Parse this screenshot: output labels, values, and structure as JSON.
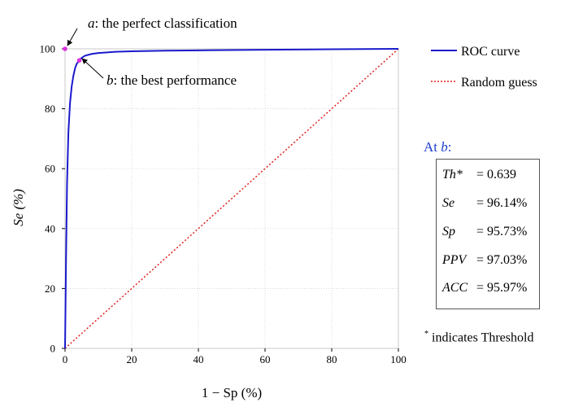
{
  "chart_data": {
    "type": "line",
    "xlabel": "1 − Sp (%)",
    "ylabel": "Se (%)",
    "xlim": [
      0,
      100
    ],
    "ylim": [
      0,
      100
    ],
    "x_ticks": [
      0,
      20,
      40,
      60,
      80,
      100
    ],
    "y_ticks": [
      0,
      20,
      40,
      60,
      80,
      100
    ],
    "grid": true,
    "legend_position": "right",
    "series": [
      {
        "name": "ROC curve",
        "color": "#1a1acc",
        "style": "solid",
        "x": [
          0,
          0.3,
          0.6,
          1.0,
          1.5,
          2.0,
          2.5,
          3.0,
          3.5,
          4.27,
          5.0,
          6.0,
          8.0,
          10.0,
          15.0,
          20.0,
          30.0,
          40.0,
          60.0,
          80.0,
          100.0
        ],
        "y": [
          0,
          30.0,
          55.0,
          72.0,
          82.0,
          87.5,
          91.0,
          93.5,
          95.0,
          96.14,
          97.0,
          97.7,
          98.3,
          98.6,
          99.0,
          99.2,
          99.4,
          99.5,
          99.7,
          99.85,
          100.0
        ]
      },
      {
        "name": "Random guess",
        "color": "#e0201c",
        "style": "dotted",
        "x": [
          0,
          100
        ],
        "y": [
          0,
          100
        ]
      }
    ],
    "points": [
      {
        "id": "a",
        "x": 0,
        "y": 100,
        "color": "#e030e0"
      },
      {
        "id": "b",
        "x": 4.27,
        "y": 96.14,
        "color": "#e030e0"
      }
    ],
    "annotations": [
      {
        "letter": "a",
        "text": ": the perfect classification"
      },
      {
        "letter": "b",
        "text": ": the best performance"
      }
    ]
  },
  "info": {
    "title_prefix": "At ",
    "title_var": "b",
    "title_suffix": ":",
    "metrics": [
      {
        "name": "Th*",
        "value": "= 0.639"
      },
      {
        "name": "Se",
        "value": "= 96.14%"
      },
      {
        "name": "Sp",
        "value": "= 95.73%"
      },
      {
        "name": "PPV",
        "value": "= 97.03%"
      },
      {
        "name": "ACC",
        "value": "= 95.97%"
      }
    ],
    "note_mark": "*",
    "note_text": " indicates Threshold"
  }
}
